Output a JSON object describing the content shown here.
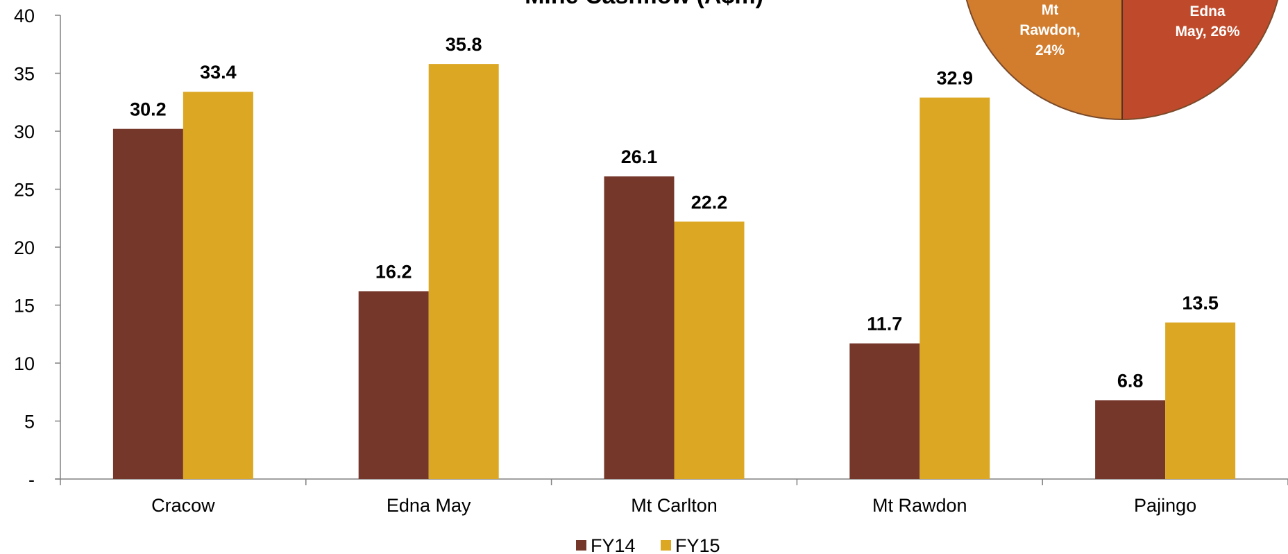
{
  "chart_data": [
    {
      "type": "bar",
      "title": "Mine Cashflow (A$m)",
      "categories": [
        "Cracow",
        "Edna May",
        "Mt Carlton",
        "Mt Rawdon",
        "Pajingo"
      ],
      "series": [
        {
          "name": "FY14",
          "color": "#75372A",
          "values": [
            30.2,
            16.2,
            26.1,
            11.7,
            6.8
          ]
        },
        {
          "name": "FY15",
          "color": "#DCA722",
          "values": [
            33.4,
            35.8,
            22.2,
            32.9,
            13.5
          ]
        }
      ],
      "data_labels": [
        [
          "30.2",
          "16.2",
          "26.1",
          "11.7",
          "6.8"
        ],
        [
          "33.4",
          "35.8",
          "22.2",
          "32.9",
          "13.5"
        ]
      ],
      "ylim": [
        0,
        40
      ],
      "yticks": [
        0,
        5,
        10,
        15,
        20,
        25,
        30,
        35,
        40
      ],
      "ytick_labels": [
        "-",
        "5",
        "10",
        "15",
        "20",
        "25",
        "30",
        "35",
        "40"
      ],
      "grid": false,
      "legend": "bottom-center"
    },
    {
      "type": "pie",
      "slices": [
        {
          "label": "Mt Rawdon",
          "label_line1": "Mt",
          "label_line2": "Rawdon,",
          "label_line3": "24%",
          "value": 24,
          "color": "#D27D2E"
        },
        {
          "label": "Edna May",
          "label_line1": "Edna",
          "label_line2": "May, 26%",
          "value": 26,
          "color": "#BF4A2B"
        }
      ]
    }
  ]
}
